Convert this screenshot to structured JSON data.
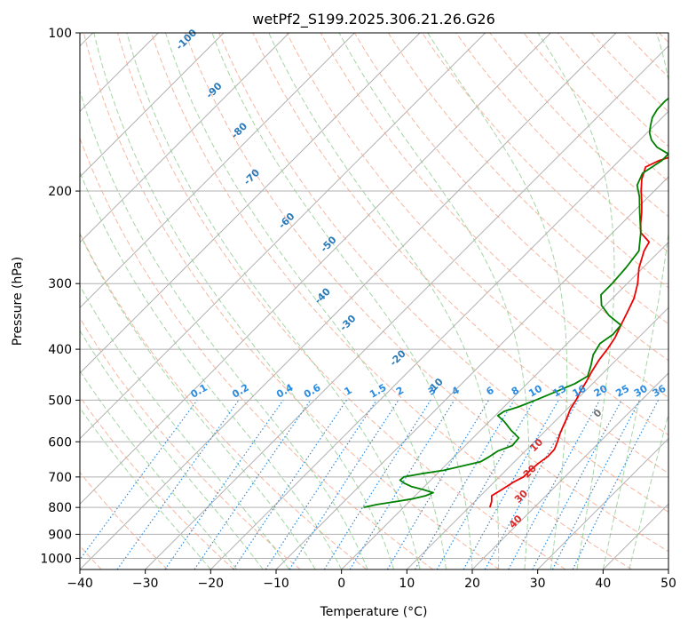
{
  "chart_data": {
    "type": "line",
    "title": "wetPf2_S199.2025.306.21.26.G26",
    "xlabel": "Temperature (°C)",
    "ylabel": "Pressure (hPa)",
    "xlim": [
      -40,
      50
    ],
    "ylim": [
      1050,
      100
    ],
    "x_ticks": [
      -40,
      -30,
      -20,
      -10,
      0,
      10,
      20,
      30,
      40,
      50
    ],
    "y_ticks": [
      100,
      200,
      300,
      400,
      500,
      600,
      700,
      800,
      900,
      1000
    ],
    "grid": true,
    "series": [
      {
        "name": "Temperature",
        "color": "#ee0000",
        "points": [
          [
            800,
            13.2
          ],
          [
            780,
            12.6
          ],
          [
            760,
            11.7
          ],
          [
            740,
            12.3
          ],
          [
            715,
            13.0
          ],
          [
            700,
            13.7
          ],
          [
            680,
            13.7
          ],
          [
            660,
            13.9
          ],
          [
            640,
            14.3
          ],
          [
            620,
            14.2
          ],
          [
            600,
            13.5
          ],
          [
            580,
            12.7
          ],
          [
            560,
            12.0
          ],
          [
            540,
            11.3
          ],
          [
            520,
            10.5
          ],
          [
            500,
            10.0
          ],
          [
            480,
            9.3
          ],
          [
            460,
            8.7
          ],
          [
            440,
            8.0
          ],
          [
            420,
            7.4
          ],
          [
            400,
            7.0
          ],
          [
            380,
            6.4
          ],
          [
            360,
            5.4
          ],
          [
            340,
            4.4
          ],
          [
            320,
            3.3
          ],
          [
            300,
            1.6
          ],
          [
            280,
            -0.6
          ],
          [
            260,
            -2.4
          ],
          [
            250,
            -3.0
          ],
          [
            240,
            -5.7
          ],
          [
            230,
            -7.2
          ],
          [
            220,
            -8.6
          ],
          [
            210,
            -10.2
          ],
          [
            200,
            -12.0
          ],
          [
            190,
            -13.7
          ],
          [
            180,
            -15.0
          ],
          [
            175,
            -13.9
          ],
          [
            170,
            -11.8
          ],
          [
            160,
            -7.4
          ],
          [
            150,
            -3.6
          ],
          [
            140,
            -2.0
          ],
          [
            130,
            -0.3
          ],
          [
            120,
            2.3
          ],
          [
            110,
            4.5
          ],
          [
            105,
            5.3
          ],
          [
            100,
            6.0
          ]
        ]
      },
      {
        "name": "Dewpoint",
        "color": "#008000",
        "points": [
          [
            800,
            -6.1
          ],
          [
            790,
            -4.5
          ],
          [
            780,
            -2.1
          ],
          [
            770,
            0.2
          ],
          [
            760,
            1.6
          ],
          [
            750,
            2.3
          ],
          [
            740,
            0.3
          ],
          [
            730,
            -2.0
          ],
          [
            720,
            -3.5
          ],
          [
            710,
            -4.7
          ],
          [
            700,
            -4.6
          ],
          [
            690,
            -2.4
          ],
          [
            680,
            0.5
          ],
          [
            665,
            3.0
          ],
          [
            655,
            4.8
          ],
          [
            640,
            5.4
          ],
          [
            625,
            5.8
          ],
          [
            610,
            7.2
          ],
          [
            590,
            7.0
          ],
          [
            570,
            4.6
          ],
          [
            550,
            2.4
          ],
          [
            535,
            0.4
          ],
          [
            525,
            0.7
          ],
          [
            515,
            2.2
          ],
          [
            500,
            3.8
          ],
          [
            480,
            5.8
          ],
          [
            465,
            7.3
          ],
          [
            450,
            8.1
          ],
          [
            430,
            7.0
          ],
          [
            410,
            5.7
          ],
          [
            390,
            5.0
          ],
          [
            375,
            5.6
          ],
          [
            360,
            5.4
          ],
          [
            345,
            2.1
          ],
          [
            330,
            -0.6
          ],
          [
            315,
            -2.3
          ],
          [
            300,
            -2.3
          ],
          [
            280,
            -2.6
          ],
          [
            260,
            -3.2
          ],
          [
            240,
            -5.7
          ],
          [
            220,
            -8.9
          ],
          [
            205,
            -11.4
          ],
          [
            195,
            -13.5
          ],
          [
            185,
            -14.5
          ],
          [
            180,
            -14.0
          ],
          [
            175,
            -13.5
          ],
          [
            170,
            -13.5
          ],
          [
            165,
            -16.3
          ],
          [
            160,
            -18.2
          ],
          [
            155,
            -19.6
          ],
          [
            150,
            -20.6
          ],
          [
            145,
            -21.5
          ],
          [
            140,
            -22.0
          ],
          [
            135,
            -22.1
          ],
          [
            130,
            -21.8
          ],
          [
            125,
            -20.8
          ],
          [
            120,
            -19.6
          ],
          [
            115,
            -18.3
          ],
          [
            110,
            -16.8
          ],
          [
            105,
            -15.1
          ],
          [
            100,
            -13.4
          ]
        ]
      }
    ],
    "dry_adiabat_labels": [
      "-100",
      "-90",
      "-80",
      "-70",
      "-60",
      "-50",
      "-40",
      "-30",
      "-20",
      "-10"
    ],
    "moist_adiabat_labels": [
      "0",
      "10",
      "20",
      "30",
      "40"
    ],
    "mixing_ratio_labels": [
      "0.1",
      "0.2",
      "0.4",
      "0.6",
      "1",
      "1.5",
      "2",
      "3",
      "4",
      "6",
      "8",
      "10",
      "13",
      "16",
      "20",
      "25",
      "30",
      "36"
    ],
    "colors": {
      "isotherm": "#b0b0b0",
      "dry_adiabat": "#f4a58a",
      "moist_adiabat": "#8fca8f",
      "mixing_ratio": "#2a8be0",
      "dry_label": "#2a7ab8",
      "moist_label": "#d62b2b",
      "background_curve": "#d8c0a0"
    }
  }
}
